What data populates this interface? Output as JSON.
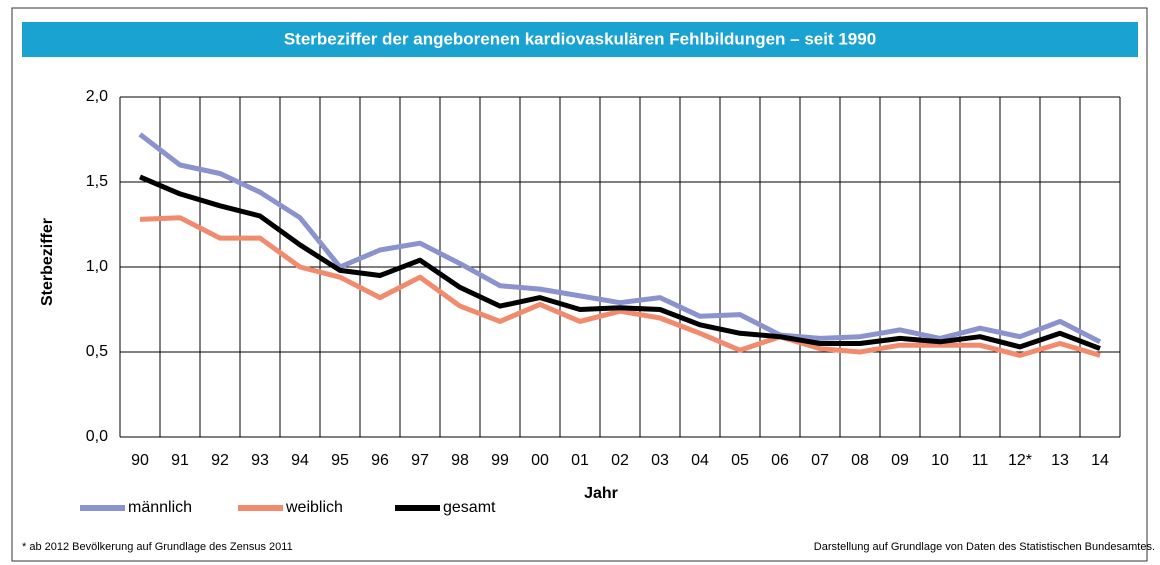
{
  "chart_data": {
    "type": "line",
    "title": "Sterbeziffer der angeborenen kardiovaskulären Fehlbildungen – seit 1990",
    "y_label": "Sterbeziffer",
    "x_label": "Jahr",
    "categories": [
      "90",
      "91",
      "92",
      "93",
      "94",
      "95",
      "96",
      "97",
      "98",
      "99",
      "00",
      "01",
      "02",
      "03",
      "04",
      "05",
      "06",
      "07",
      "08",
      "09",
      "10",
      "11",
      "12*",
      "13",
      "14"
    ],
    "series": [
      {
        "name": "männlich",
        "color": "#8b93cf",
        "values": [
          1.78,
          1.6,
          1.55,
          1.44,
          1.29,
          1.0,
          1.1,
          1.14,
          1.02,
          0.89,
          0.87,
          0.83,
          0.79,
          0.82,
          0.71,
          0.72,
          0.6,
          0.58,
          0.59,
          0.63,
          0.58,
          0.64,
          0.59,
          0.68,
          0.56
        ]
      },
      {
        "name": "weiblich",
        "color": "#f28b6e",
        "values": [
          1.28,
          1.29,
          1.17,
          1.17,
          1.0,
          0.94,
          0.82,
          0.94,
          0.77,
          0.68,
          0.78,
          0.68,
          0.74,
          0.7,
          0.61,
          0.51,
          0.59,
          0.52,
          0.5,
          0.54,
          0.54,
          0.54,
          0.48,
          0.55,
          0.48
        ]
      },
      {
        "name": "gesamt",
        "color": "#000000",
        "values": [
          1.53,
          1.43,
          1.36,
          1.3,
          1.13,
          0.98,
          0.95,
          1.04,
          0.88,
          0.77,
          0.82,
          0.75,
          0.76,
          0.75,
          0.66,
          0.61,
          0.59,
          0.55,
          0.55,
          0.58,
          0.56,
          0.59,
          0.53,
          0.61,
          0.52
        ]
      }
    ],
    "ylim": [
      0,
      2
    ],
    "yticks": [
      {
        "value": 0,
        "label": "0,0"
      },
      {
        "value": 0.5,
        "label": "0,5"
      },
      {
        "value": 1,
        "label": "1,0"
      },
      {
        "value": 1.5,
        "label": "1,5"
      },
      {
        "value": 2,
        "label": "2,0"
      }
    ],
    "grid": true,
    "footnote": "* ab 2012 Bevölkerung auf Grundlage des Zensus 2011",
    "source": "Darstellung auf Grundlage von Daten des Statistischen Bundesamtes."
  }
}
